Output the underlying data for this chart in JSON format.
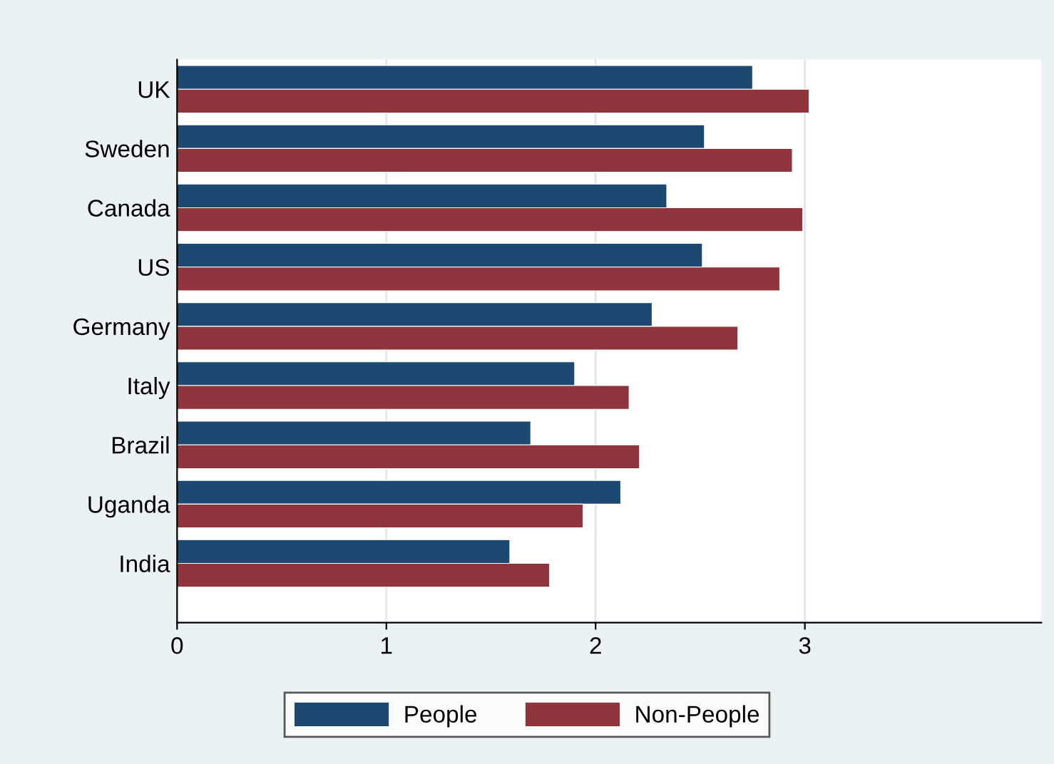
{
  "chart_data": {
    "type": "bar",
    "orientation": "horizontal",
    "categories": [
      "UK",
      "Sweden",
      "Canada",
      "US",
      "Germany",
      "Italy",
      "Brazil",
      "Uganda",
      "India"
    ],
    "series": [
      {
        "name": "People",
        "color": "#1d4870",
        "values": [
          2.75,
          2.52,
          2.34,
          2.51,
          2.27,
          1.9,
          1.69,
          2.12,
          1.59
        ]
      },
      {
        "name": "Non-People",
        "color": "#90353e",
        "values": [
          3.02,
          2.94,
          2.99,
          2.88,
          2.68,
          2.16,
          2.21,
          1.94,
          1.78
        ]
      }
    ],
    "xlim": [
      0,
      4.13
    ],
    "xticks": [
      0,
      1,
      2,
      3
    ],
    "grid": "x",
    "legend": "bottom"
  }
}
